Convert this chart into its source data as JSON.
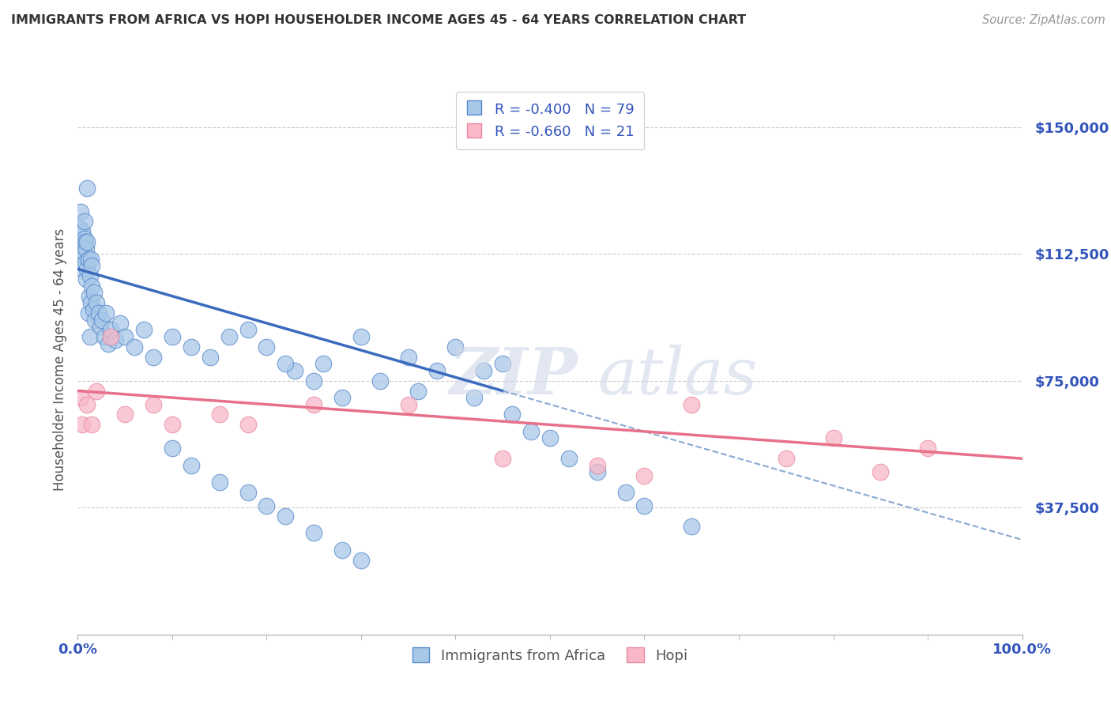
{
  "title": "IMMIGRANTS FROM AFRICA VS HOPI HOUSEHOLDER INCOME AGES 45 - 64 YEARS CORRELATION CHART",
  "source": "Source: ZipAtlas.com",
  "ylabel": "Householder Income Ages 45 - 64 years",
  "xlim": [
    0,
    100
  ],
  "ylim": [
    0,
    162500
  ],
  "yticks": [
    0,
    37500,
    75000,
    112500,
    150000
  ],
  "ytick_labels": [
    "",
    "$37,500",
    "$75,000",
    "$112,500",
    "$150,000"
  ],
  "xtick_labels": [
    "0.0%",
    "100.0%"
  ],
  "blue_R": -0.4,
  "blue_N": 79,
  "pink_R": -0.66,
  "pink_N": 21,
  "blue_color": "#a8c8e8",
  "blue_edge_color": "#5588cc",
  "blue_line_color": "#3b6bbf",
  "pink_color": "#f8b8c8",
  "pink_edge_color": "#e888a0",
  "pink_line_color": "#e8708a",
  "dashed_line_color": "#88aad0",
  "text_color": "#3355bb",
  "blue_scatter_x": [
    0.2,
    0.3,
    0.3,
    0.4,
    0.5,
    0.5,
    0.6,
    0.7,
    0.7,
    0.8,
    0.8,
    0.9,
    0.9,
    1.0,
    1.0,
    1.0,
    1.1,
    1.1,
    1.2,
    1.3,
    1.3,
    1.4,
    1.4,
    1.5,
    1.5,
    1.6,
    1.7,
    1.8,
    2.0,
    2.2,
    2.4,
    2.6,
    2.8,
    3.0,
    3.2,
    3.5,
    4.0,
    4.5,
    5.0,
    6.0,
    7.0,
    8.0,
    10.0,
    12.0,
    14.0,
    16.0,
    18.0,
    20.0,
    23.0,
    26.0,
    30.0,
    35.0,
    38.0,
    40.0,
    43.0,
    45.0,
    28.0,
    32.0,
    22.0,
    25.0,
    36.0,
    42.0,
    46.0,
    48.0,
    50.0,
    52.0,
    55.0,
    58.0,
    60.0,
    65.0,
    10.0,
    12.0,
    15.0,
    18.0,
    20.0,
    22.0,
    25.0,
    28.0,
    30.0
  ],
  "blue_scatter_y": [
    120000,
    112000,
    125000,
    115000,
    108000,
    119000,
    113000,
    117000,
    122000,
    110000,
    116000,
    105000,
    114000,
    108000,
    116000,
    132000,
    95000,
    111000,
    100000,
    88000,
    106000,
    98000,
    111000,
    103000,
    109000,
    96000,
    101000,
    93000,
    98000,
    95000,
    91000,
    93000,
    88000,
    95000,
    86000,
    90000,
    87000,
    92000,
    88000,
    85000,
    90000,
    82000,
    88000,
    85000,
    82000,
    88000,
    90000,
    85000,
    78000,
    80000,
    88000,
    82000,
    78000,
    85000,
    78000,
    80000,
    70000,
    75000,
    80000,
    75000,
    72000,
    70000,
    65000,
    60000,
    58000,
    52000,
    48000,
    42000,
    38000,
    32000,
    55000,
    50000,
    45000,
    42000,
    38000,
    35000,
    30000,
    25000,
    22000
  ],
  "pink_scatter_x": [
    0.3,
    0.5,
    1.0,
    1.5,
    2.0,
    3.5,
    5.0,
    8.0,
    10.0,
    15.0,
    18.0,
    25.0,
    35.0,
    45.0,
    55.0,
    60.0,
    65.0,
    75.0,
    80.0,
    85.0,
    90.0
  ],
  "pink_scatter_y": [
    70000,
    62000,
    68000,
    62000,
    72000,
    88000,
    65000,
    68000,
    62000,
    65000,
    62000,
    68000,
    68000,
    52000,
    50000,
    47000,
    68000,
    52000,
    58000,
    48000,
    55000
  ],
  "blue_trend_x0": 0,
  "blue_trend_y0": 108000,
  "blue_trend_x1": 45,
  "blue_trend_y1": 72000,
  "blue_dash_x0": 45,
  "blue_dash_y0": 72000,
  "blue_dash_x1": 100,
  "blue_dash_y1": 28000,
  "pink_trend_x0": 0,
  "pink_trend_y0": 72000,
  "pink_trend_x1": 100,
  "pink_trend_y1": 52000
}
